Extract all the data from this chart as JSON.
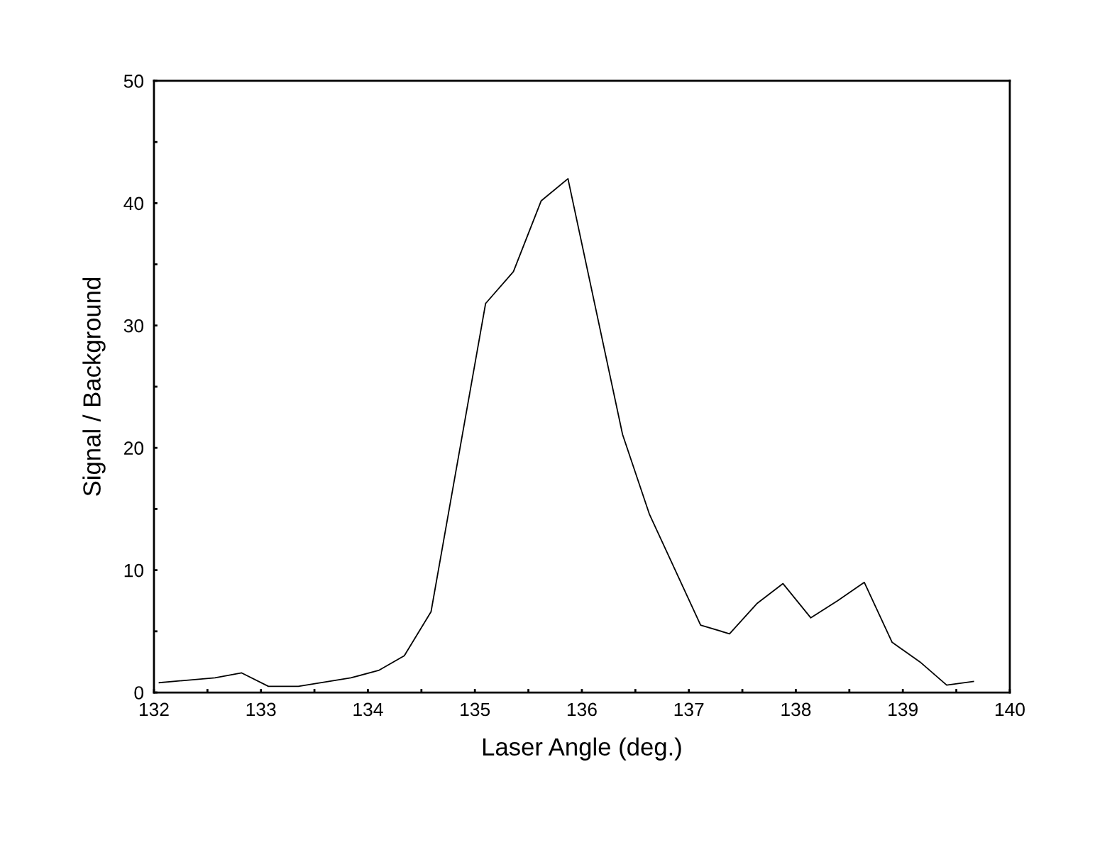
{
  "chart_data": {
    "type": "line",
    "xlabel": "Laser Angle (deg.)",
    "ylabel": "Signal / Background",
    "x": [
      132.05,
      132.57,
      132.82,
      133.07,
      133.35,
      133.84,
      134.1,
      134.34,
      134.59,
      135.1,
      135.36,
      135.62,
      135.87,
      136.38,
      136.63,
      137.11,
      137.38,
      137.64,
      137.88,
      138.14,
      138.39,
      138.64,
      138.9,
      139.16,
      139.41,
      139.66
    ],
    "series": [
      {
        "color": "#000000",
        "values": [
          0.8,
          1.2,
          1.6,
          0.5,
          0.5,
          1.2,
          1.8,
          3.0,
          6.6,
          31.8,
          34.4,
          40.2,
          42.0,
          21.1,
          14.6,
          5.5,
          4.8,
          7.3,
          8.9,
          6.1,
          7.5,
          9.0,
          4.1,
          2.5,
          0.6,
          0.9
        ]
      }
    ],
    "xlim": [
      132,
      140
    ],
    "ylim": [
      0,
      50
    ],
    "xticks": [
      132,
      {
        "value": 132.5,
        "label": null
      },
      133,
      {
        "value": 133.5,
        "label": null
      },
      134,
      {
        "value": 134.5,
        "label": null
      },
      135,
      {
        "value": 135.5,
        "label": null
      },
      136,
      {
        "value": 136.5,
        "label": null
      },
      137,
      {
        "value": 137.5,
        "label": null
      },
      138,
      {
        "value": 138.5,
        "label": null
      },
      139,
      {
        "value": 139.5,
        "label": null
      },
      140
    ],
    "yticks": [
      0,
      {
        "value": 5,
        "label": null
      },
      10,
      {
        "value": 15,
        "label": null
      },
      20,
      {
        "value": 25,
        "label": null
      },
      30,
      {
        "value": 35,
        "label": null
      },
      40,
      {
        "value": 45,
        "label": null
      },
      50
    ],
    "grid": false,
    "legend": false,
    "marker": "none",
    "line_style": "solid"
  }
}
